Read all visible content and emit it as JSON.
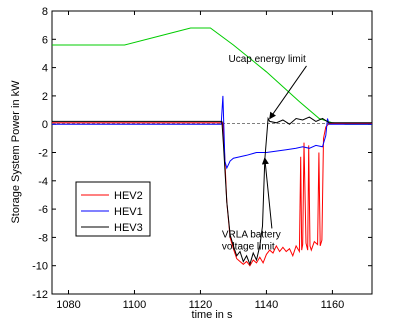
{
  "chart_data": {
    "type": "line",
    "title": "",
    "xlabel": "time in s",
    "ylabel": "Storage System Power in kW",
    "xlim": [
      1075,
      1172
    ],
    "ylim": [
      -12,
      8
    ],
    "xticks": [
      "1080",
      "1100",
      "1120",
      "1140",
      "1160"
    ],
    "yticks": [
      "-12",
      "-10",
      "-8",
      "-6",
      "-4",
      "-2",
      "0",
      "2",
      "4",
      "6",
      "8"
    ],
    "xtick_values": [
      1080,
      1100,
      1120,
      1140,
      1160
    ],
    "ytick_values": [
      -12,
      -10,
      -8,
      -6,
      -4,
      -2,
      0,
      2,
      4,
      6,
      8
    ],
    "grid": false,
    "legend_position": "lower-left",
    "legend": [
      "HEV2",
      "HEV1",
      "HEV3"
    ],
    "annotations": [
      {
        "lines": [
          "Ucap energy limit"
        ],
        "x": 1128.5,
        "y": 4.4,
        "arrow_to": [
          1141,
          0.4
        ]
      },
      {
        "lines": [
          "VRLA battery",
          "voltage limit"
        ],
        "x": 1126.5,
        "y": -8.0,
        "arrow_to": [
          1139.5,
          -2.4
        ]
      }
    ],
    "series": [
      {
        "name": "green-reference",
        "color": "#00cc00",
        "x": [
          1075,
          1097,
          1107,
          1117,
          1123,
          1130,
          1140,
          1150,
          1156,
          1160,
          1164,
          1172
        ],
        "y": [
          5.6,
          5.6,
          6.2,
          6.8,
          6.8,
          5.6,
          3.7,
          1.6,
          0.4,
          0.1,
          0.0,
          0.0
        ]
      },
      {
        "name": "gray-baseline",
        "color": "#7f7f7f",
        "x": [
          1075,
          1172
        ],
        "y": [
          0.05,
          0.05
        ]
      },
      {
        "name": "HEV2",
        "color": "#ff0000",
        "x": [
          1075,
          1126.8,
          1127.2,
          1128,
          1129,
          1130,
          1131,
          1132,
          1133,
          1134,
          1135,
          1136,
          1137,
          1138,
          1139,
          1140,
          1141,
          1142,
          1143,
          1144,
          1145,
          1146,
          1147,
          1148,
          1149,
          1150,
          1150.4,
          1150.7,
          1151,
          1151.4,
          1152,
          1152.5,
          1152.8,
          1153.2,
          1153.6,
          1154.5,
          1155.5,
          1155.9,
          1156.3,
          1156.8,
          1157.3,
          1158,
          1159,
          1172
        ],
        "y": [
          0.1,
          0.1,
          -1.5,
          -5.5,
          -8.0,
          -8.8,
          -9.5,
          -9.7,
          -9.9,
          -9.7,
          -10.0,
          -9.6,
          -9.8,
          -9.4,
          -9.8,
          -9.2,
          -8.9,
          -9.1,
          -8.6,
          -9.0,
          -8.7,
          -9.0,
          -8.8,
          -9.3,
          -8.6,
          -9.0,
          -2.3,
          -8.9,
          -8.5,
          -1.3,
          -8.4,
          -8.9,
          -1.5,
          -8.6,
          -8.9,
          -8.3,
          -8.5,
          -2.0,
          -8.6,
          -8.2,
          -1.0,
          -0.2,
          0.05,
          0.05
        ]
      },
      {
        "name": "HEV1",
        "color": "#0000ff",
        "x": [
          1075,
          1126.3,
          1126.8,
          1127.4,
          1128,
          1129,
          1130,
          1132,
          1134,
          1137,
          1140,
          1143,
          1146,
          1149,
          1151,
          1153,
          1155,
          1157,
          1158,
          1158.5,
          1159,
          1172
        ],
        "y": [
          0.0,
          0.0,
          2.0,
          -2.6,
          -3.1,
          -2.6,
          -2.4,
          -2.3,
          -2.2,
          -2.0,
          -2.0,
          -1.9,
          -1.8,
          -1.7,
          -1.6,
          -1.7,
          -1.5,
          -1.6,
          -0.8,
          0.4,
          0.0,
          0.0
        ]
      },
      {
        "name": "HEV3",
        "color": "#000000",
        "x": [
          1075,
          1126.5,
          1127,
          1128,
          1129,
          1130,
          1131,
          1132,
          1133,
          1134,
          1135,
          1136,
          1137,
          1138,
          1138.8,
          1139.5,
          1140.5,
          1141,
          1143,
          1145,
          1147,
          1149,
          1151,
          1153,
          1155,
          1157,
          1159,
          1172
        ],
        "y": [
          0.2,
          0.2,
          -1.5,
          -5.5,
          -7.8,
          -8.6,
          -9.3,
          -9.0,
          -9.7,
          -9.3,
          -9.9,
          -9.1,
          -9.6,
          -8.6,
          -7.2,
          -2.5,
          0.4,
          0.2,
          0.1,
          0.3,
          0.0,
          0.4,
          0.3,
          0.5,
          0.2,
          0.4,
          0.1,
          0.1
        ]
      }
    ]
  }
}
